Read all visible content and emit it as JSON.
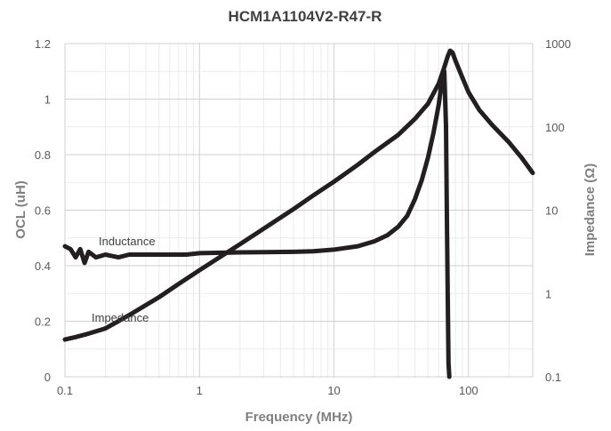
{
  "chart_data": {
    "type": "line",
    "title": "HCM1A1104V2-R47-R",
    "xlabel": "Frequency (MHz)",
    "ylabel": "OCL (uH)",
    "y2label": "Impedance (Ω)",
    "x_scale": "log",
    "xlim": [
      0.1,
      300
    ],
    "ylim": [
      0,
      1.2
    ],
    "y2lim": [
      0.1,
      1000
    ],
    "y2_scale": "log",
    "x_ticks": [
      "0.1",
      "1",
      "10",
      "100"
    ],
    "y_ticks": [
      "0",
      "0.2",
      "0.4",
      "0.6",
      "0.8",
      "1",
      "1.2"
    ],
    "y2_ticks": [
      "0.1",
      "1",
      "10",
      "100",
      "1000"
    ],
    "grid": true,
    "series": [
      {
        "name": "Inductance",
        "axis": "left",
        "x": [
          0.1,
          0.11,
          0.12,
          0.13,
          0.14,
          0.15,
          0.17,
          0.2,
          0.25,
          0.3,
          0.4,
          0.6,
          0.8,
          1,
          2,
          3,
          5,
          7,
          10,
          15,
          20,
          25,
          30,
          35,
          40,
          45,
          50,
          55,
          60,
          64,
          66,
          68,
          69,
          70,
          71,
          72
        ],
        "y": [
          0.47,
          0.46,
          0.43,
          0.46,
          0.41,
          0.45,
          0.43,
          0.44,
          0.43,
          0.44,
          0.44,
          0.44,
          0.44,
          0.445,
          0.448,
          0.449,
          0.45,
          0.452,
          0.458,
          0.47,
          0.488,
          0.51,
          0.54,
          0.58,
          0.64,
          0.71,
          0.79,
          0.88,
          0.98,
          1.08,
          1.1,
          0.9,
          0.6,
          0.3,
          0.05,
          0
        ]
      },
      {
        "name": "Impedance",
        "axis": "right",
        "x": [
          0.1,
          0.12,
          0.15,
          0.2,
          0.3,
          0.5,
          0.7,
          1,
          2,
          3,
          5,
          7,
          10,
          15,
          20,
          30,
          40,
          50,
          60,
          65,
          70,
          73,
          76,
          80,
          90,
          100,
          120,
          150,
          200,
          250,
          300
        ],
        "y": [
          0.28,
          0.3,
          0.33,
          0.38,
          0.55,
          0.9,
          1.3,
          1.9,
          3.9,
          6,
          10.3,
          15,
          22,
          35,
          50,
          80,
          125,
          190,
          330,
          480,
          700,
          820,
          780,
          620,
          390,
          260,
          160,
          105,
          65,
          42,
          28
        ]
      }
    ],
    "annotations": [
      "Inductance",
      "Impedance"
    ]
  }
}
